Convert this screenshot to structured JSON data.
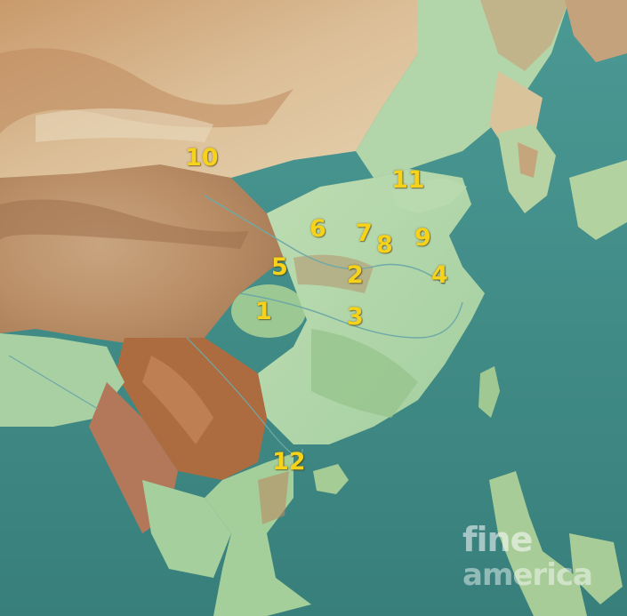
{
  "map": {
    "description_colors": {
      "sea": "#3f8f8a",
      "lowland": "#a9d4a6",
      "mountain": "#b06a3e",
      "desert": "#d9b48a",
      "marker": "#f6d21a"
    },
    "markers": [
      {
        "id": "1",
        "label": "1"
      },
      {
        "id": "2",
        "label": "2"
      },
      {
        "id": "3",
        "label": "3"
      },
      {
        "id": "4",
        "label": "4"
      },
      {
        "id": "5",
        "label": "5"
      },
      {
        "id": "6",
        "label": "6"
      },
      {
        "id": "7",
        "label": "7"
      },
      {
        "id": "8",
        "label": "8"
      },
      {
        "id": "9",
        "label": "9"
      },
      {
        "id": "10",
        "label": "10"
      },
      {
        "id": "11",
        "label": "11"
      },
      {
        "id": "12",
        "label": "12"
      }
    ]
  },
  "watermark": {
    "line1": "fine",
    "line2": "america"
  }
}
